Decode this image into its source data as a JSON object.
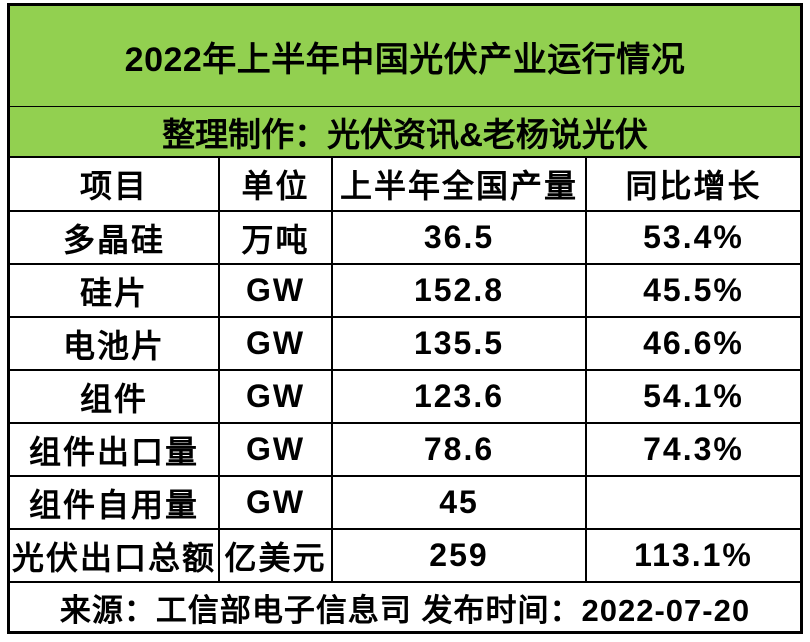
{
  "table": {
    "title": "2022年上半年中国光伏产业运行情况",
    "subtitle": "整理制作：光伏资讯&老杨说光伏",
    "columns": [
      "项目",
      "单位",
      "上半年全国产量",
      "同比增长"
    ],
    "rows": [
      {
        "item": "多晶硅",
        "unit": "万吨",
        "output": "36.5",
        "growth": "53.4%"
      },
      {
        "item": "硅片",
        "unit": "GW",
        "output": "152.8",
        "growth": "45.5%"
      },
      {
        "item": "电池片",
        "unit": "GW",
        "output": "135.5",
        "growth": "46.6%"
      },
      {
        "item": "组件",
        "unit": "GW",
        "output": "123.6",
        "growth": "54.1%"
      },
      {
        "item": "组件出口量",
        "unit": "GW",
        "output": "78.6",
        "growth": "74.3%"
      },
      {
        "item": "组件自用量",
        "unit": "GW",
        "output": "45",
        "growth": ""
      },
      {
        "item": "光伏出口总额",
        "unit": "亿美元",
        "output": "259",
        "growth": "113.1%"
      }
    ],
    "footer": "来源：工信部电子信息司 发布时间：2022-07-20",
    "colors": {
      "header_green": "#92D050",
      "border": "#000000",
      "background": "#FFFFFF",
      "text": "#000000"
    }
  },
  "chart_data": {
    "type": "table",
    "title": "2022年上半年中国光伏产业运行情况",
    "subtitle": "整理制作：光伏资讯&老杨说光伏",
    "columns": [
      "项目",
      "单位",
      "上半年全国产量",
      "同比增长"
    ],
    "rows": [
      [
        "多晶硅",
        "万吨",
        36.5,
        "53.4%"
      ],
      [
        "硅片",
        "GW",
        152.8,
        "45.5%"
      ],
      [
        "电池片",
        "GW",
        135.5,
        "46.6%"
      ],
      [
        "组件",
        "GW",
        123.6,
        "54.1%"
      ],
      [
        "组件出口量",
        "GW",
        78.6,
        "74.3%"
      ],
      [
        "组件自用量",
        "GW",
        45,
        ""
      ],
      [
        "光伏出口总额",
        "亿美元",
        259,
        "113.1%"
      ]
    ],
    "source_footer": "来源：工信部电子信息司 发布时间：2022-07-20"
  }
}
